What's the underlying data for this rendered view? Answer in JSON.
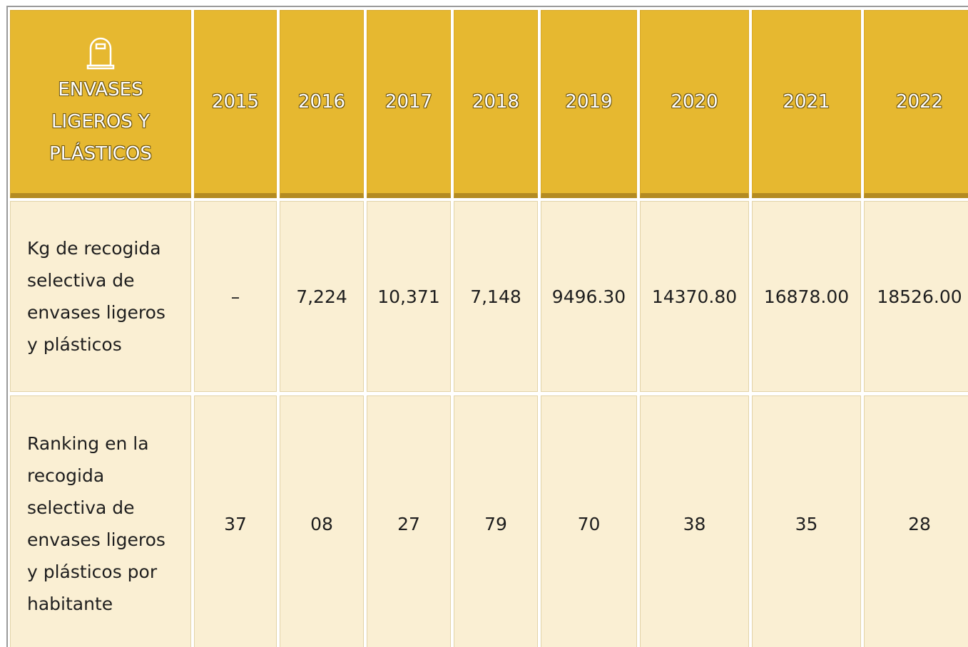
{
  "header": {
    "title": "ENVASES LIGEROS Y PLÁSTICOS",
    "columns": [
      "2015",
      "2016",
      "2017",
      "2018",
      "2019",
      "2020",
      "2021",
      "2022"
    ]
  },
  "table": {
    "rows": [
      [
        "Kg de recogida selectiva de envases ligeros y plásticos",
        "–",
        "7,224",
        "10,371",
        "7,148",
        "9496.30",
        "14370.80",
        "16878.00",
        "18526.00"
      ],
      [
        "Ranking en la recogida selectiva de envases ligeros y plásticos por habitante",
        "37",
        "08",
        "27",
        "79",
        "70",
        "38",
        "35",
        "28"
      ]
    ]
  }
}
